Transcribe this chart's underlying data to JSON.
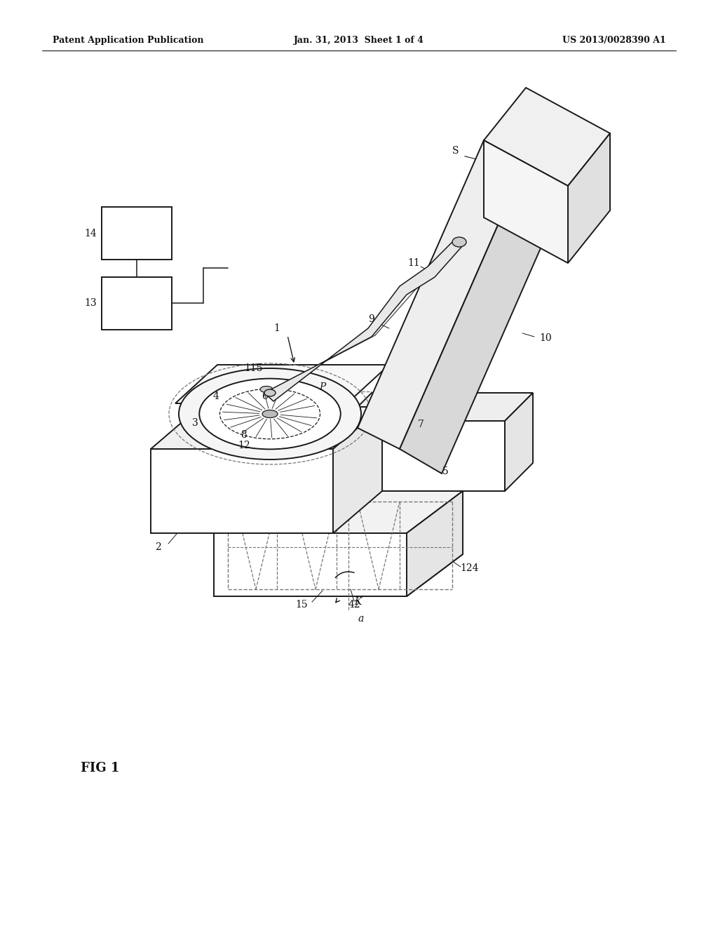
{
  "bg_color": "#ffffff",
  "header_left": "Patent Application Publication",
  "header_center": "Jan. 31, 2013  Sheet 1 of 4",
  "header_right": "US 2013/0028390 A1",
  "figure_label": "FIG 1",
  "line_color": "#1a1a1a",
  "dashed_color": "#777777",
  "figsize": [
    10.24,
    13.2
  ],
  "dpi": 100
}
